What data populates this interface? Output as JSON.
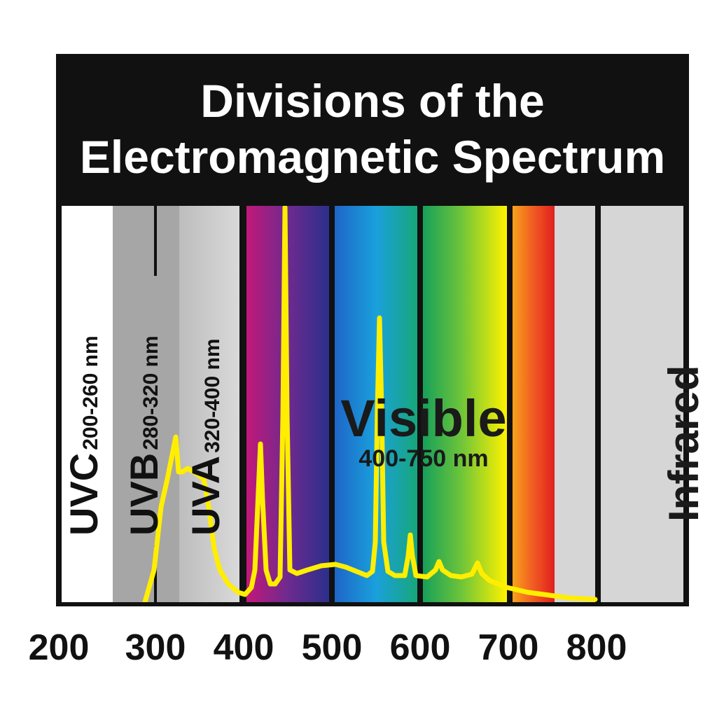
{
  "title": {
    "line1": "Divisions of the",
    "line2": "Electromagnetic Spectrum"
  },
  "bands": {
    "uvc": {
      "name": "UVC",
      "range": "200-260 nm"
    },
    "uvb": {
      "name": "UVB",
      "range": "280-320 nm"
    },
    "uva": {
      "name": "UVA",
      "range": "320-400 nm"
    },
    "visible": {
      "name": "Visible",
      "range": "400-750 nm"
    },
    "infrared": {
      "name": "Infrared"
    }
  },
  "x_ticks": [
    "200",
    "300",
    "400",
    "500",
    "600",
    "700",
    "800"
  ],
  "colors": {
    "frame": "#111111",
    "curve": "#ffee00",
    "uvc_bg": "#ffffff",
    "uvb_bg": "#a6a6a6",
    "uva_bg": "#cfcfcf",
    "infrared_bg": "#d6d6d6"
  }
}
